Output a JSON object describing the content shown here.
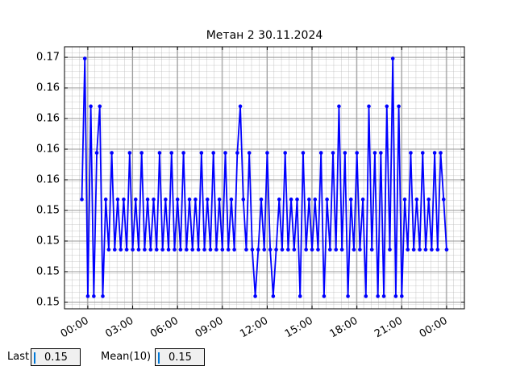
{
  "chart_data": {
    "type": "line",
    "title": "Метан 2 30.11.2024",
    "color": "#0000ff",
    "grid": true,
    "x": [
      -0.4,
      -0.2,
      0,
      0.2,
      0.4,
      0.6,
      0.8,
      1,
      1.2,
      1.4,
      1.6,
      1.8,
      2,
      2.2,
      2.4,
      2.6,
      2.8,
      3,
      3.2,
      3.4,
      3.6,
      3.8,
      4,
      4.2,
      4.4,
      4.6,
      4.8,
      5,
      5.2,
      5.4,
      5.6,
      5.8,
      6,
      6.2,
      6.4,
      6.6,
      6.8,
      7,
      7.2,
      7.4,
      7.6,
      7.8,
      8,
      8.2,
      8.4,
      8.6,
      8.8,
      9,
      9.2,
      9.4,
      9.6,
      9.8,
      10,
      10.2,
      10.4,
      10.6,
      10.8,
      11,
      11.2,
      11.4,
      11.6,
      11.8,
      12,
      12.2,
      12.4,
      12.6,
      12.8,
      13,
      13.2,
      13.4,
      13.6,
      13.8,
      14,
      14.2,
      14.4,
      14.6,
      14.8,
      15,
      15.2,
      15.4,
      15.6,
      15.8,
      16,
      16.2,
      16.4,
      16.6,
      16.8,
      17,
      17.2,
      17.4,
      17.6,
      17.8,
      18,
      18.2,
      18.4,
      18.6,
      18.8,
      19,
      19.2,
      19.4,
      19.6,
      19.8,
      20,
      20.2,
      20.4,
      20.6,
      20.8,
      21,
      21.2,
      21.4,
      21.6,
      21.8,
      22,
      22.2,
      22.4,
      22.6,
      22.8,
      23,
      23.2,
      23.4,
      23.6,
      23.8,
      24
    ],
    "values": [
      0.1559,
      0.1674,
      0.148,
      0.1635,
      0.148,
      0.1597,
      0.1635,
      0.148,
      0.1559,
      0.1518,
      0.1597,
      0.1518,
      0.1559,
      0.1518,
      0.1559,
      0.1518,
      0.1597,
      0.1518,
      0.1559,
      0.1518,
      0.1597,
      0.1518,
      0.1559,
      0.1518,
      0.1559,
      0.1518,
      0.1597,
      0.1518,
      0.1559,
      0.1518,
      0.1597,
      0.1518,
      0.1559,
      0.1518,
      0.1597,
      0.1518,
      0.1559,
      0.1518,
      0.1559,
      0.1518,
      0.1597,
      0.1518,
      0.1559,
      0.1518,
      0.1597,
      0.1518,
      0.1559,
      0.1518,
      0.1597,
      0.1518,
      0.1559,
      0.1518,
      0.1597,
      0.1635,
      0.1559,
      0.1518,
      0.1597,
      0.1518,
      0.148,
      0.1518,
      0.1559,
      0.1518,
      0.1597,
      0.1518,
      0.148,
      0.1518,
      0.1559,
      0.1518,
      0.1597,
      0.1518,
      0.1559,
      0.1518,
      0.1559,
      0.148,
      0.1597,
      0.1518,
      0.1559,
      0.1518,
      0.1559,
      0.1518,
      0.1597,
      0.148,
      0.1559,
      0.1518,
      0.1597,
      0.1518,
      0.1635,
      0.1518,
      0.1597,
      0.148,
      0.1559,
      0.1518,
      0.1597,
      0.1518,
      0.1559,
      0.148,
      0.1635,
      0.1518,
      0.1597,
      0.148,
      0.1597,
      0.148,
      0.1635,
      0.1518,
      0.1674,
      0.148,
      0.1635,
      0.148,
      0.1559,
      0.1518,
      0.1597,
      0.1518,
      0.1559,
      0.1518,
      0.1597,
      0.1518,
      0.1559,
      0.1518,
      0.1597,
      0.1518,
      0.1597,
      0.1559,
      0.1518
    ],
    "xlim": [
      -1.56,
      25.19
    ],
    "xticks": [
      {
        "value": 0,
        "label": "00:00"
      },
      {
        "value": 3,
        "label": "03:00"
      },
      {
        "value": 6,
        "label": "06:00"
      },
      {
        "value": 9,
        "label": "09:00"
      },
      {
        "value": 12,
        "label": "12:00"
      },
      {
        "value": 15,
        "label": "15:00"
      },
      {
        "value": 18,
        "label": "18:00"
      },
      {
        "value": 21,
        "label": "21:00"
      },
      {
        "value": 24,
        "label": "00:00"
      }
    ],
    "ylim": [
      0.14697,
      0.16836
    ],
    "yticks": [
      {
        "value": 0.1475,
        "label": "0.15"
      },
      0.15,
      {
        "value": 0.1525,
        "label": "0.15"
      },
      {
        "value": 0.155,
        "label": "0.15"
      },
      {
        "value": 0.1575,
        "label": "0.16"
      },
      0.16,
      {
        "value": 0.1625,
        "label": "0.16"
      },
      {
        "value": 0.165,
        "label": "0.16"
      },
      {
        "value": 0.1675,
        "label": "0.17"
      }
    ]
  },
  "controls": {
    "last_label": "Last",
    "last_value": "0.15",
    "mean_label": "Mean(10)",
    "mean_value": "0.15"
  }
}
